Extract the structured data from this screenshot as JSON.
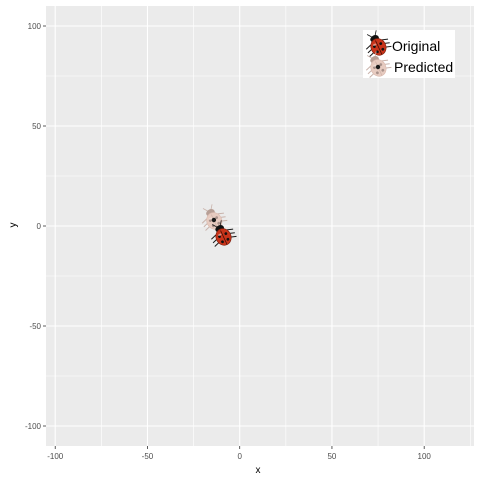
{
  "chart_data": {
    "type": "scatter",
    "xlabel": "x",
    "ylabel": "y",
    "xlim": [
      -105,
      127
    ],
    "ylim": [
      -110,
      110
    ],
    "x_ticks": [
      -100,
      -50,
      0,
      50,
      100
    ],
    "y_ticks": [
      -100,
      -50,
      0,
      50,
      100
    ],
    "x_tick_labels": [
      "-100",
      "-50",
      "0",
      "50",
      "100"
    ],
    "y_tick_labels": [
      "-100",
      "-50",
      "0",
      "50",
      "100"
    ],
    "grid": true,
    "legend_position": "top-right",
    "series": [
      {
        "name": "Original",
        "marker": "ladybug-icon",
        "points": [
          {
            "x": -9,
            "y": -5
          }
        ]
      },
      {
        "name": "Predicted",
        "marker": "faded-ladybug-icon",
        "points": [
          {
            "x": -14,
            "y": 3
          }
        ]
      }
    ]
  },
  "colors": {
    "panel_background": "#ebebeb",
    "grid_major": "#ffffff",
    "ladybug_shell": "#c8341a",
    "ladybug_head": "#111111",
    "predicted_shell": "#e7cbc0"
  }
}
